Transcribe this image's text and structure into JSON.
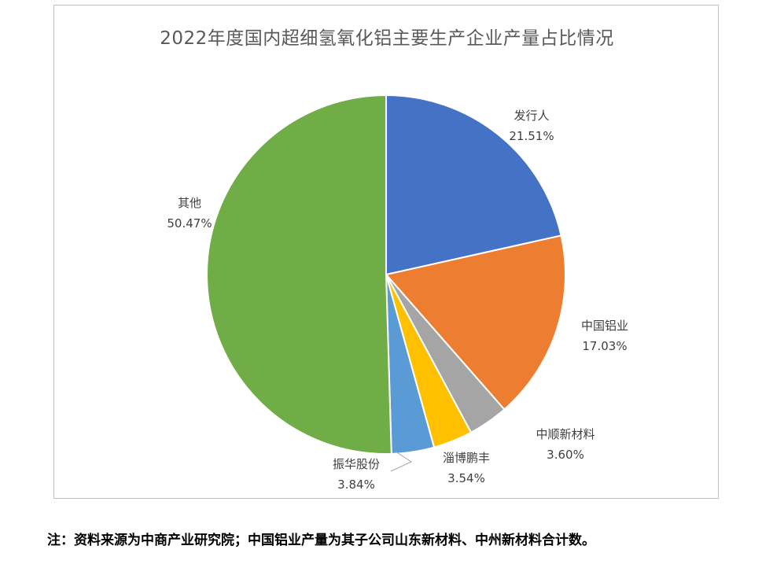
{
  "chart_data": {
    "type": "pie",
    "title": "2022年度国内超细氢氧化铝主要生产企业产量占比情况",
    "slices": [
      {
        "label": "发行人",
        "value": 21.51,
        "value_label": "21.51%",
        "color": "#4472c4"
      },
      {
        "label": "中国铝业",
        "value": 17.03,
        "value_label": "17.03%",
        "color": "#ed7d31"
      },
      {
        "label": "中顺新材料",
        "value": 3.6,
        "value_label": "3.60%",
        "color": "#a5a5a5"
      },
      {
        "label": "淄博鹏丰",
        "value": 3.54,
        "value_label": "3.54%",
        "color": "#ffc000"
      },
      {
        "label": "振华股份",
        "value": 3.84,
        "value_label": "3.84%",
        "color": "#5b9bd5"
      },
      {
        "label": "其他",
        "value": 50.47,
        "value_label": "50.47%",
        "color": "#70ad47"
      }
    ]
  },
  "note": "注：资料来源为中商产业研究院；中国铝业产量为其子公司山东新材料、中州新材料合计数。"
}
